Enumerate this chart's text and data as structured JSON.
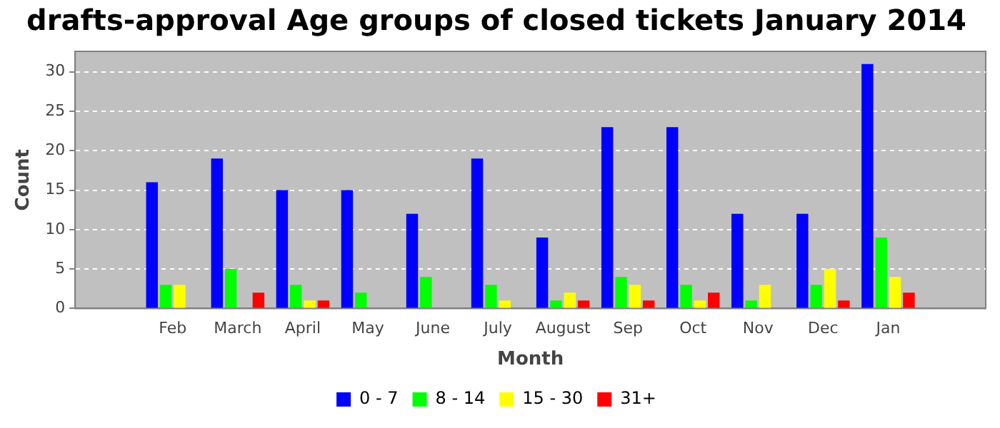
{
  "chart_data": {
    "type": "bar",
    "title": "drafts-approval Age groups of closed tickets January 2014",
    "xlabel": "Month",
    "ylabel": "Count",
    "categories": [
      null,
      "Feb",
      "March",
      "April",
      "May",
      "June",
      "July",
      "August",
      "Sep",
      "Oct",
      "Nov",
      "Dec",
      "Jan",
      null
    ],
    "series": [
      {
        "name": "0 - 7",
        "color": "#0000ff",
        "values": [
          null,
          16,
          19,
          15,
          15,
          12,
          19,
          9,
          23,
          23,
          12,
          12,
          31,
          null
        ]
      },
      {
        "name": "8 - 14",
        "color": "#00ff00",
        "values": [
          null,
          3,
          5,
          3,
          2,
          4,
          3,
          1,
          4,
          3,
          1,
          3,
          9,
          null
        ]
      },
      {
        "name": "15 - 30",
        "color": "#ffff00",
        "values": [
          null,
          3,
          0,
          1,
          0,
          0,
          1,
          2,
          3,
          1,
          3,
          5,
          4,
          null
        ]
      },
      {
        "name": "31+",
        "color": "#ff0000",
        "values": [
          null,
          0,
          2,
          1,
          0,
          0,
          0,
          1,
          1,
          2,
          0,
          1,
          2,
          null
        ]
      }
    ],
    "ylim": [
      0,
      32.6
    ],
    "yticks": [
      0,
      5,
      10,
      15,
      20,
      25,
      30
    ],
    "grid": "y",
    "legend": "bottom"
  }
}
